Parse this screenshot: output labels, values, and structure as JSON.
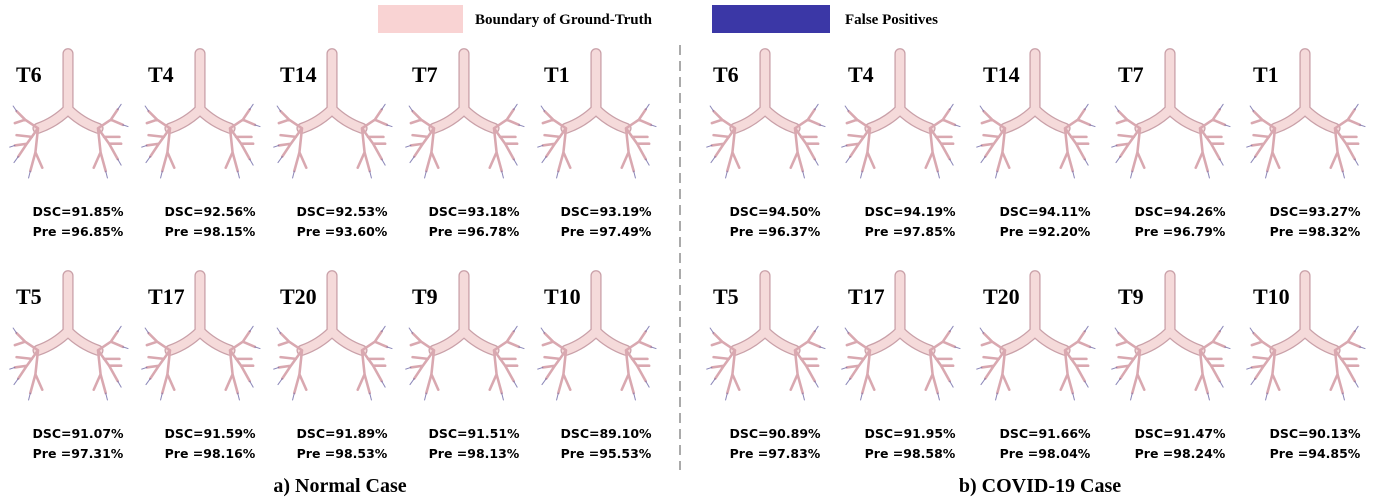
{
  "legend": {
    "items": [
      {
        "label": "Boundary of Ground-Truth",
        "color": "#f9d3d3"
      },
      {
        "label": "False Positives",
        "color": "#3b37a6"
      }
    ]
  },
  "panels": [
    {
      "caption": "a) Normal Case",
      "cases": [
        {
          "label": "T6",
          "dsc": "DSC=91.85%",
          "pre": "Pre =96.85%"
        },
        {
          "label": "T4",
          "dsc": "DSC=92.56%",
          "pre": "Pre =98.15%"
        },
        {
          "label": "T14",
          "dsc": "DSC=92.53%",
          "pre": "Pre =93.60%"
        },
        {
          "label": "T7",
          "dsc": "DSC=93.18%",
          "pre": "Pre =96.78%"
        },
        {
          "label": "T1",
          "dsc": "DSC=93.19%",
          "pre": "Pre =97.49%"
        },
        {
          "label": "T5",
          "dsc": "DSC=91.07%",
          "pre": "Pre =97.31%"
        },
        {
          "label": "T17",
          "dsc": "DSC=91.59%",
          "pre": "Pre =98.16%"
        },
        {
          "label": "T20",
          "dsc": "DSC=91.89%",
          "pre": "Pre =98.53%"
        },
        {
          "label": "T9",
          "dsc": "DSC=91.51%",
          "pre": "Pre =98.13%"
        },
        {
          "label": "T10",
          "dsc": "DSC=89.10%",
          "pre": "Pre =95.53%"
        }
      ]
    },
    {
      "caption": "b) COVID-19 Case",
      "cases": [
        {
          "label": "T6",
          "dsc": "DSC=94.50%",
          "pre": "Pre =96.37%"
        },
        {
          "label": "T4",
          "dsc": "DSC=94.19%",
          "pre": "Pre =97.85%"
        },
        {
          "label": "T14",
          "dsc": "DSC=94.11%",
          "pre": "Pre =92.20%"
        },
        {
          "label": "T7",
          "dsc": "DSC=94.26%",
          "pre": "Pre =96.79%"
        },
        {
          "label": "T1",
          "dsc": "DSC=93.27%",
          "pre": "Pre =98.32%"
        },
        {
          "label": "T5",
          "dsc": "DSC=90.89%",
          "pre": "Pre =97.83%"
        },
        {
          "label": "T17",
          "dsc": "DSC=91.95%",
          "pre": "Pre =98.58%"
        },
        {
          "label": "T20",
          "dsc": "DSC=91.66%",
          "pre": "Pre =98.04%"
        },
        {
          "label": "T9",
          "dsc": "DSC=91.47%",
          "pre": "Pre =98.24%"
        },
        {
          "label": "T10",
          "dsc": "DSC=90.13%",
          "pre": "Pre =94.85%"
        }
      ]
    }
  ]
}
